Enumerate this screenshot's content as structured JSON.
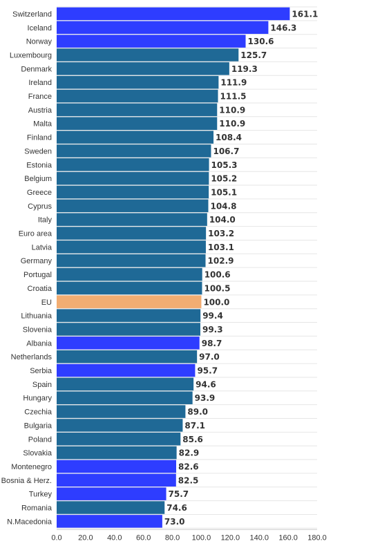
{
  "chart_data": {
    "type": "bar",
    "orientation": "horizontal",
    "title": "",
    "xlabel": "",
    "ylabel": "",
    "xlim": [
      0,
      180
    ],
    "x_ticks": [
      "0.0",
      "20.0",
      "40.0",
      "60.0",
      "80.0",
      "100.0",
      "120.0",
      "140.0",
      "160.0",
      "180.0"
    ],
    "grid": true,
    "colors": {
      "non_euro": "#2e3dff",
      "euro": "#1f6996",
      "eu": "#f2ad72"
    },
    "bars": [
      {
        "label": "Switzerland",
        "value": 161.1,
        "group": "non_euro",
        "value_label": "161.1"
      },
      {
        "label": "Iceland",
        "value": 146.3,
        "group": "non_euro",
        "value_label": "146.3"
      },
      {
        "label": "Norway",
        "value": 130.6,
        "group": "non_euro",
        "value_label": "130.6"
      },
      {
        "label": "Luxembourg",
        "value": 125.7,
        "group": "euro",
        "value_label": "125.7"
      },
      {
        "label": "Denmark",
        "value": 119.3,
        "group": "euro",
        "value_label": "119.3"
      },
      {
        "label": "Ireland",
        "value": 111.9,
        "group": "euro",
        "value_label": "111.9"
      },
      {
        "label": "France",
        "value": 111.5,
        "group": "euro",
        "value_label": "111.5"
      },
      {
        "label": "Austria",
        "value": 110.9,
        "group": "euro",
        "value_label": "110.9"
      },
      {
        "label": "Malta",
        "value": 110.9,
        "group": "euro",
        "value_label": "110.9"
      },
      {
        "label": "Finland",
        "value": 108.4,
        "group": "euro",
        "value_label": "108.4"
      },
      {
        "label": "Sweden",
        "value": 106.7,
        "group": "euro",
        "value_label": "106.7"
      },
      {
        "label": "Estonia",
        "value": 105.3,
        "group": "euro",
        "value_label": "105.3"
      },
      {
        "label": "Belgium",
        "value": 105.2,
        "group": "euro",
        "value_label": "105.2"
      },
      {
        "label": "Greece",
        "value": 105.1,
        "group": "euro",
        "value_label": "105.1"
      },
      {
        "label": "Cyprus",
        "value": 104.8,
        "group": "euro",
        "value_label": "104.8"
      },
      {
        "label": "Italy",
        "value": 104.0,
        "group": "euro",
        "value_label": "104.0"
      },
      {
        "label": "Euro area",
        "value": 103.2,
        "group": "euro",
        "value_label": "103.2"
      },
      {
        "label": "Latvia",
        "value": 103.1,
        "group": "euro",
        "value_label": "103.1"
      },
      {
        "label": "Germany",
        "value": 102.9,
        "group": "euro",
        "value_label": "102.9"
      },
      {
        "label": "Portugal",
        "value": 100.6,
        "group": "euro",
        "value_label": "100.6"
      },
      {
        "label": "Croatia",
        "value": 100.5,
        "group": "euro",
        "value_label": "100.5"
      },
      {
        "label": "EU",
        "value": 100.0,
        "group": "eu",
        "value_label": "100.0"
      },
      {
        "label": "Lithuania",
        "value": 99.4,
        "group": "euro",
        "value_label": "99.4"
      },
      {
        "label": "Slovenia",
        "value": 99.3,
        "group": "euro",
        "value_label": "99.3"
      },
      {
        "label": "Albania",
        "value": 98.7,
        "group": "non_euro",
        "value_label": "98.7"
      },
      {
        "label": "Netherlands",
        "value": 97.0,
        "group": "euro",
        "value_label": "97.0"
      },
      {
        "label": "Serbia",
        "value": 95.7,
        "group": "non_euro",
        "value_label": "95.7"
      },
      {
        "label": "Spain",
        "value": 94.6,
        "group": "euro",
        "value_label": "94.6"
      },
      {
        "label": "Hungary",
        "value": 93.9,
        "group": "euro",
        "value_label": "93.9"
      },
      {
        "label": "Czechia",
        "value": 89.0,
        "group": "euro",
        "value_label": "89.0"
      },
      {
        "label": "Bulgaria",
        "value": 87.1,
        "group": "euro",
        "value_label": "87.1"
      },
      {
        "label": "Poland",
        "value": 85.6,
        "group": "euro",
        "value_label": "85.6"
      },
      {
        "label": "Slovakia",
        "value": 82.9,
        "group": "euro",
        "value_label": "82.9"
      },
      {
        "label": "Montenegro",
        "value": 82.6,
        "group": "non_euro",
        "value_label": "82.6"
      },
      {
        "label": "Bosnia & Herz.",
        "value": 82.5,
        "group": "non_euro",
        "value_label": "82.5"
      },
      {
        "label": "Turkey",
        "value": 75.7,
        "group": "non_euro",
        "value_label": "75.7"
      },
      {
        "label": "Romania",
        "value": 74.6,
        "group": "euro",
        "value_label": "74.6"
      },
      {
        "label": "N.Macedonia",
        "value": 73.0,
        "group": "non_euro",
        "value_label": "73.0"
      }
    ]
  }
}
